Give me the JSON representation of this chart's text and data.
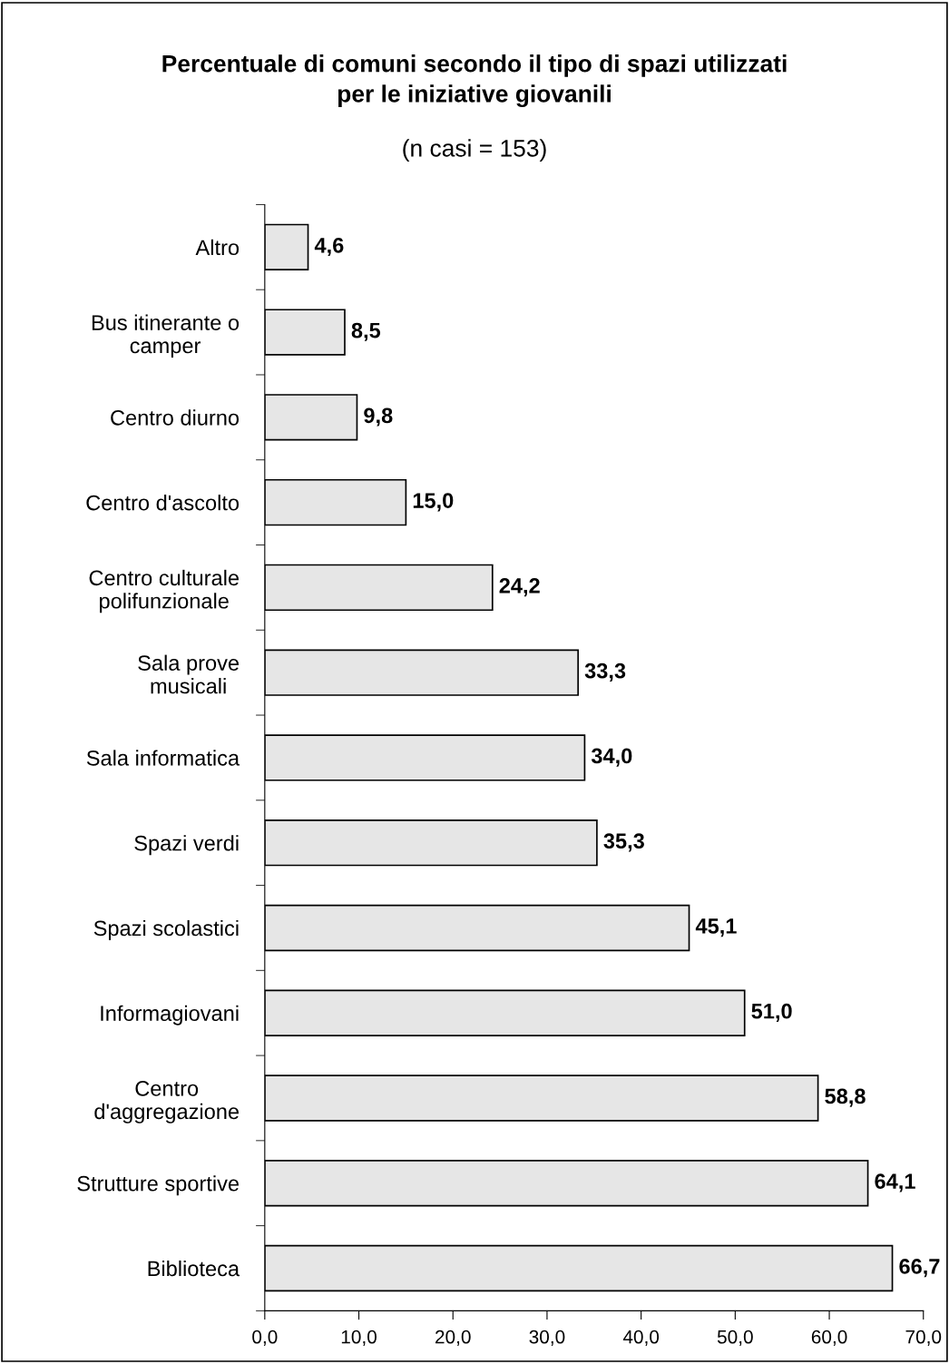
{
  "chart_data": {
    "type": "bar",
    "orientation": "horizontal",
    "title": "Percentuale di comuni secondo il tipo di spazi utilizzati\nper le iniziative giovanili",
    "subtitle": "(n casi = 153)",
    "categories": [
      "Altro",
      "Bus itinerante o\ncamper",
      "Centro diurno",
      "Centro d'ascolto",
      "Centro culturale\npolifunzionale",
      "Sala prove\nmusicali",
      "Sala informatica",
      "Spazi verdi",
      "Spazi scolastici",
      "Informagiovani",
      "Centro\nd'aggregazione",
      "Strutture sportive",
      "Biblioteca"
    ],
    "values": [
      4.6,
      8.5,
      9.8,
      15.0,
      24.2,
      33.3,
      34.0,
      35.3,
      45.1,
      51.0,
      58.8,
      64.1,
      66.7
    ],
    "value_labels": [
      "4,6",
      "8,5",
      "9,8",
      "15,0",
      "24,2",
      "33,3",
      "34,0",
      "35,3",
      "45,1",
      "51,0",
      "58,8",
      "64,1",
      "66,7"
    ],
    "color": "#e6e6e6",
    "xlim": [
      0,
      70
    ],
    "xticks": [
      {
        "value": 0,
        "label": "0,0"
      },
      {
        "value": 10,
        "label": "10,0"
      },
      {
        "value": 20,
        "label": "20,0"
      },
      {
        "value": 30,
        "label": "30,0"
      },
      {
        "value": 40,
        "label": "40,0"
      },
      {
        "value": 50,
        "label": "50,0"
      },
      {
        "value": 60,
        "label": "60,0"
      },
      {
        "value": 70,
        "label": "70,0"
      }
    ],
    "grid": false,
    "legend": false
  }
}
